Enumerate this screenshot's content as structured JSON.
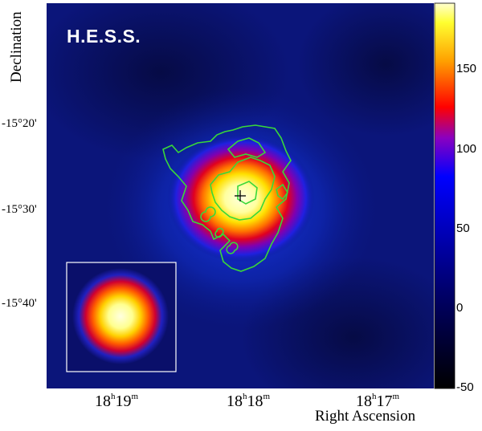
{
  "figure": {
    "title": "H.E.S.S.",
    "ylabel": "Declination",
    "xlabel": "Right Ascension",
    "dec_ticks": [
      "-15°20'",
      "-15°30'",
      "-15°40'"
    ],
    "ra_ticks": [
      {
        "h": "18",
        "m": "19"
      },
      {
        "h": "18",
        "m": "18"
      },
      {
        "h": "18",
        "m": "17"
      }
    ],
    "ra_units": {
      "h": "h",
      "m": "m"
    }
  },
  "colorbar": {
    "ticks": [
      "150",
      "100",
      "50",
      "0",
      "-50"
    ],
    "tick_values": [
      150,
      100,
      50,
      0,
      -50
    ],
    "range": [
      -50,
      190
    ],
    "colors": [
      "#000000",
      "#00007a",
      "#0000ff",
      "#ff0000",
      "#ffff00",
      "#ffffc0"
    ]
  },
  "colors": {
    "background_level": "#08126e",
    "contour": "#39d839",
    "marker": "#000000",
    "inset_border": "#ffffff"
  }
}
